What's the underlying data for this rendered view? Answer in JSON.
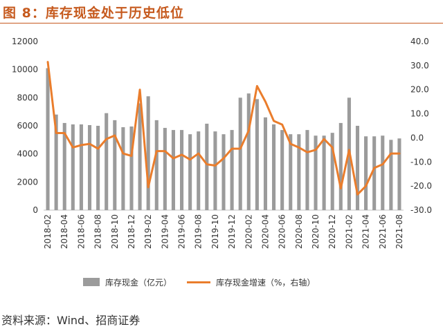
{
  "title": "图 8：库存现金处于历史低位",
  "source": "资料来源：Wind、招商证券",
  "colors": {
    "title": "#c65a1e",
    "bar": "#9b9b9b",
    "line": "#ea7d2c"
  },
  "chart_data": {
    "type": "bar+line",
    "categories": [
      "2018-02",
      "2018-03",
      "2018-04",
      "2018-05",
      "2018-06",
      "2018-07",
      "2018-08",
      "2018-09",
      "2018-10",
      "2018-11",
      "2018-12",
      "2019-01",
      "2019-02",
      "2019-03",
      "2019-04",
      "2019-05",
      "2019-06",
      "2019-07",
      "2019-08",
      "2019-09",
      "2019-10",
      "2019-11",
      "2019-12",
      "2020-01",
      "2020-02",
      "2020-03",
      "2020-04",
      "2020-05",
      "2020-06",
      "2020-07",
      "2020-08",
      "2020-09",
      "2020-10",
      "2020-11",
      "2020-12",
      "2021-01",
      "2021-02",
      "2021-03",
      "2021-04",
      "2021-05",
      "2021-06",
      "2021-07",
      "2021-08"
    ],
    "tick_labels": [
      "2018-02",
      "2018-04",
      "2018-06",
      "2018-08",
      "2018-10",
      "2018-12",
      "2019-02",
      "2019-04",
      "2019-06",
      "2019-08",
      "2019-10",
      "2019-12",
      "2020-02",
      "2020-04",
      "2020-06",
      "2020-08",
      "2020-10",
      "2020-12",
      "2021-02",
      "2021-04",
      "2021-06",
      "2021-08"
    ],
    "series": [
      {
        "name": "库存现金（亿元）",
        "type": "bar",
        "axis": "left",
        "values": [
          10100,
          6800,
          6200,
          6100,
          6100,
          6050,
          6000,
          6900,
          6400,
          5900,
          5950,
          7600,
          8100,
          6400,
          5850,
          5700,
          5700,
          5400,
          5600,
          6150,
          5600,
          5400,
          5700,
          8000,
          8300,
          7900,
          6600,
          6100,
          5700,
          5400,
          5400,
          5700,
          5300,
          5300,
          5500,
          6200,
          8000,
          6000,
          5250,
          5250,
          5300,
          5000,
          5100
        ]
      },
      {
        "name": "库存现金增速（%，右轴）",
        "type": "line",
        "axis": "right",
        "values": [
          31.5,
          2.0,
          2.0,
          -4.0,
          -3.0,
          -2.5,
          -4.5,
          -0.5,
          1.0,
          -6.5,
          -7.5,
          20.0,
          -20.5,
          -5.5,
          -5.5,
          -8.5,
          -7.0,
          -9.0,
          -6.5,
          -11.0,
          -11.5,
          -8.5,
          -4.5,
          -4.5,
          3.0,
          21.5,
          15.0,
          7.0,
          5.5,
          -2.5,
          -4.0,
          -6.0,
          -5.0,
          -0.5,
          -4.0,
          -21.0,
          -5.0,
          -23.5,
          -20.0,
          -12.5,
          -11.0,
          -6.5,
          -6.5
        ]
      }
    ],
    "left_axis": {
      "ylim": [
        0,
        12000
      ],
      "ticks": [
        "0",
        "2000",
        "4000",
        "6000",
        "8000",
        "10000",
        "12000"
      ]
    },
    "right_axis": {
      "ylim": [
        -30,
        40
      ],
      "ticks": [
        "40.0",
        "30.0",
        "20.0",
        "10.0",
        "0.0",
        "-10.0",
        "-20.0",
        "-30.0"
      ]
    },
    "legend": {
      "placement": "bottom"
    }
  }
}
